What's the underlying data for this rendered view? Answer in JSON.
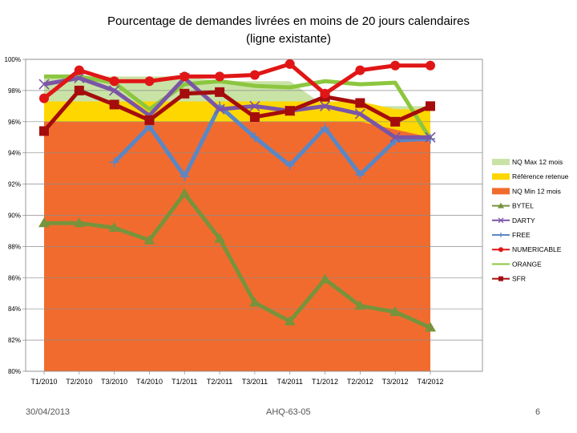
{
  "title_line1": "Pourcentage de demandes livrées en moins de 20 jours calendaires",
  "title_line2": "(ligne existante)",
  "footer": {
    "date": "30/04/2013",
    "ref": "AHQ-63-05",
    "page": "6"
  },
  "chart_data": {
    "type": "line",
    "title": "Pourcentage de demandes livrées en moins de 20 jours calendaires (ligne existante)",
    "categories": [
      "T1/2010",
      "T2/2010",
      "T3/2010",
      "T4/2010",
      "T1/2011",
      "T2/2011",
      "T3/2011",
      "T4/2011",
      "T1/2012",
      "T2/2012",
      "T3/2012",
      "T4/2012"
    ],
    "ylim": [
      80,
      100
    ],
    "yticks": [
      "80%",
      "82%",
      "84%",
      "86%",
      "88%",
      "90%",
      "92%",
      "94%",
      "96%",
      "98%",
      "100%"
    ],
    "grid": true,
    "legend_position": "right",
    "areas": [
      {
        "name": "NQ Max 12 mois",
        "color": "#c9e3a6",
        "values": [
          98.9,
          98.9,
          98.9,
          98.9,
          98.9,
          98.6,
          98.6,
          98.6,
          97.0,
          97.0,
          97.0,
          97.0
        ]
      },
      {
        "name": "Référence retenue",
        "color": "#ffd700",
        "values": [
          97.3,
          97.3,
          97.3,
          97.3,
          97.3,
          97.3,
          97.3,
          97.3,
          97.3,
          97.3,
          96.8,
          96.8
        ]
      },
      {
        "name": "NQ Min 12 mois",
        "color": "#f26b2e",
        "values": [
          96.0,
          96.0,
          96.0,
          96.0,
          96.0,
          96.0,
          96.0,
          96.0,
          96.0,
          96.0,
          95.5,
          95.0
        ]
      }
    ],
    "series": [
      {
        "name": "BYTEL",
        "color": "#77933c",
        "marker": "triangle",
        "values": [
          89.5,
          89.5,
          89.2,
          88.4,
          91.4,
          88.5,
          84.4,
          83.2,
          85.9,
          84.2,
          83.8,
          82.8
        ]
      },
      {
        "name": "DARTY",
        "color": "#7b55a6",
        "marker": "x",
        "values": [
          98.4,
          98.8,
          98.0,
          96.4,
          98.8,
          96.8,
          97.0,
          96.7,
          97.0,
          96.5,
          95.0,
          95.0
        ]
      },
      {
        "name": "FREE",
        "color": "#5a87c5",
        "marker": "plus",
        "values": [
          null,
          null,
          93.4,
          95.7,
          92.5,
          97.0,
          95.0,
          93.2,
          95.6,
          92.6,
          94.8,
          94.9
        ]
      },
      {
        "name": "NUMERICABLE",
        "color": "#e01616",
        "marker": "circle",
        "values": [
          97.5,
          99.3,
          98.6,
          98.6,
          98.9,
          98.9,
          99.0,
          99.7,
          97.8,
          99.3,
          99.6,
          99.6
        ]
      },
      {
        "name": "ORANGE",
        "color": "#8cc63f",
        "marker": "none",
        "values": [
          98.9,
          98.9,
          98.5,
          96.8,
          98.4,
          98.6,
          98.3,
          98.2,
          98.6,
          98.4,
          98.5,
          94.9
        ]
      },
      {
        "name": "SFR",
        "color": "#a50d0d",
        "marker": "square",
        "values": [
          95.4,
          98.0,
          97.1,
          96.1,
          97.8,
          97.9,
          96.3,
          96.7,
          97.6,
          97.2,
          96.0,
          97.0
        ]
      }
    ]
  }
}
